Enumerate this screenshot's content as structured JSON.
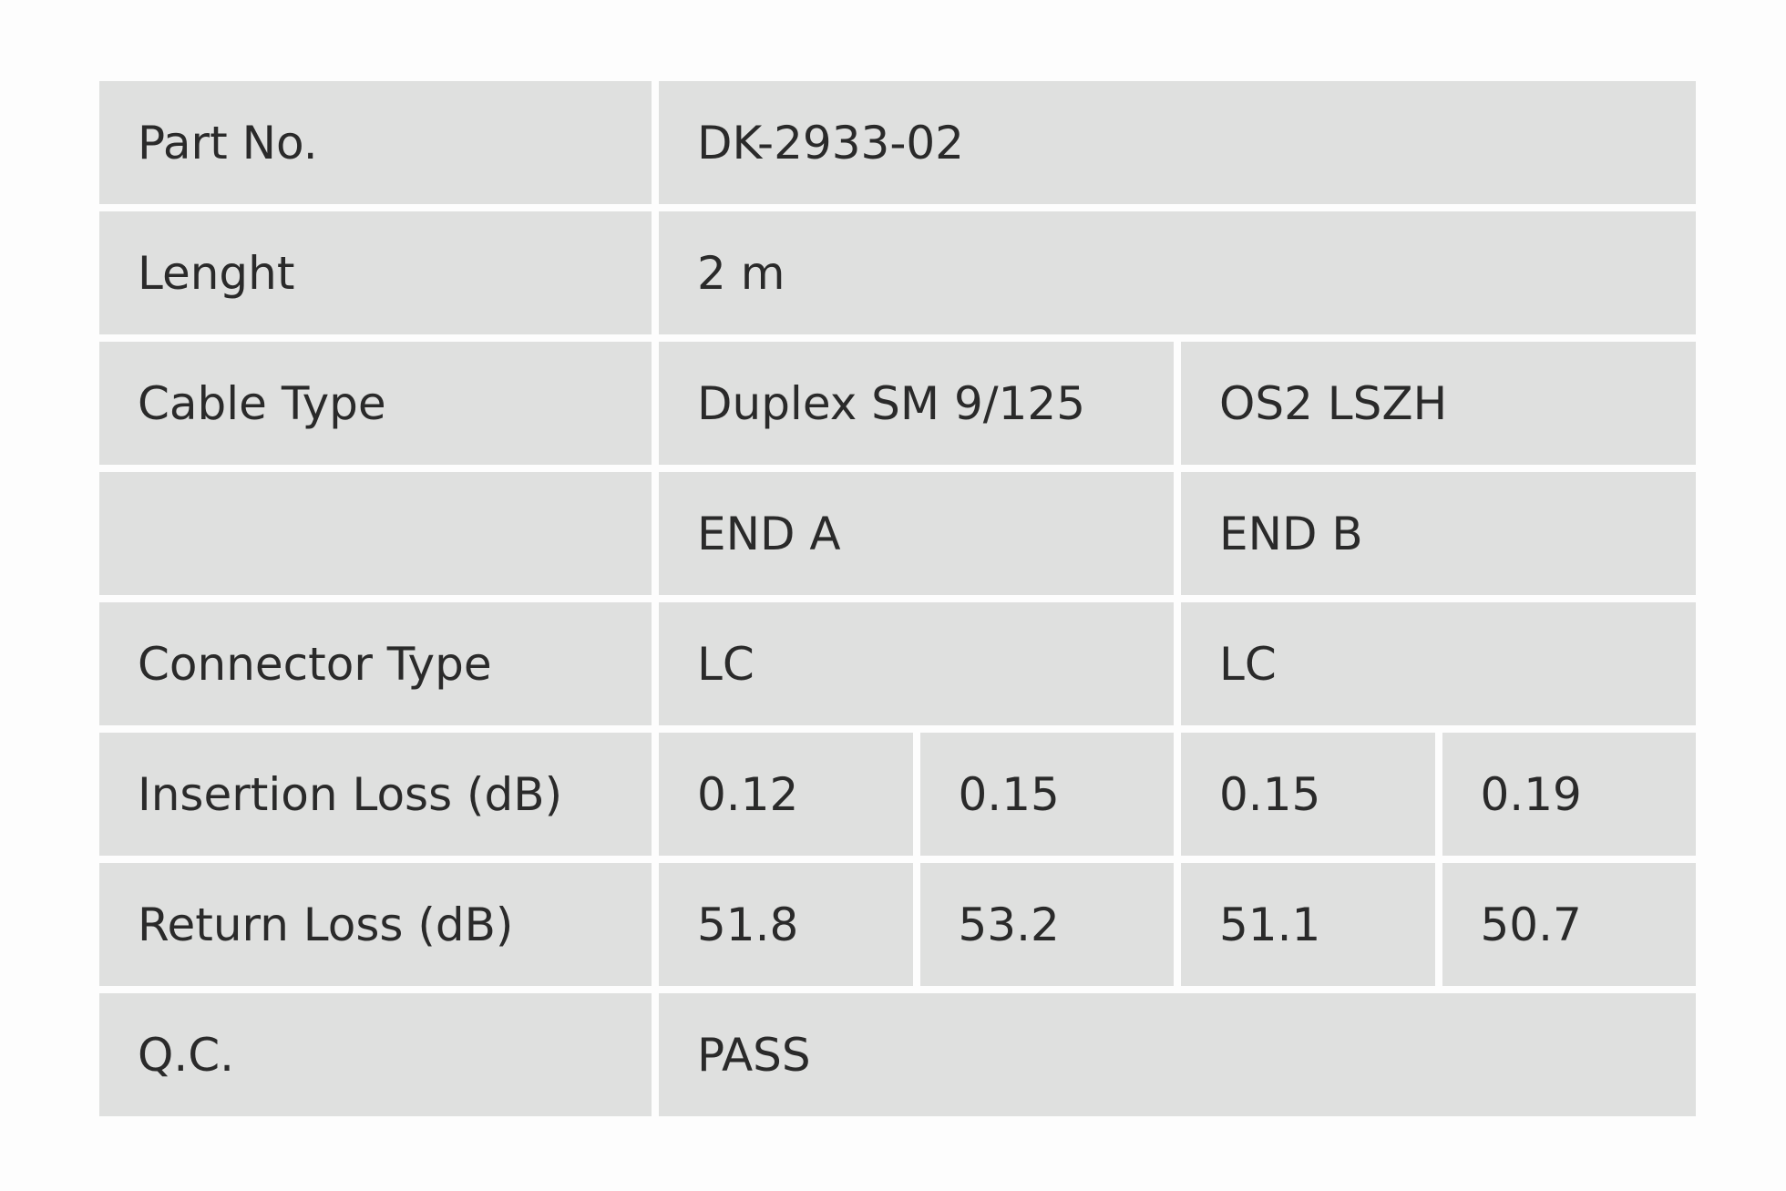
{
  "table": {
    "rows": [
      {
        "label": "Part No.",
        "cells": [
          "DK-2933-02"
        ]
      },
      {
        "label": "Lenght",
        "cells": [
          "2 m"
        ]
      },
      {
        "label": "Cable Type",
        "cells": [
          "Duplex SM 9/125",
          "OS2 LSZH"
        ]
      },
      {
        "label": null,
        "cells": [
          "END A",
          "END B"
        ]
      },
      {
        "label": "Connector Type",
        "cells": [
          "LC",
          "LC"
        ]
      },
      {
        "label": "Insertion Loss (dB)",
        "cells": [
          0.12,
          0.15,
          0.15,
          0.19
        ]
      },
      {
        "label": "Return Loss (dB)",
        "cells": [
          51.8,
          53.2,
          51.1,
          50.7
        ]
      },
      {
        "label": "Q.C.",
        "cells": [
          "PASS"
        ]
      }
    ]
  }
}
